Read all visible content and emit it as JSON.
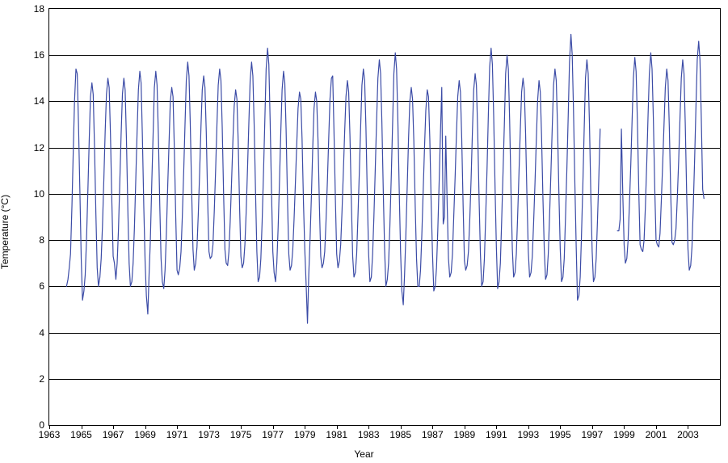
{
  "chart": {
    "type": "line",
    "background_color": "#ffffff",
    "plot_border_color": "#000000",
    "grid_color": "#000000",
    "line_color": "#3b4ba6",
    "line_width": 1.2,
    "font_family": "Arial",
    "axis_label_fontsize": 12,
    "tick_label_fontsize": 12,
    "y_axis": {
      "title": "Temperature (°C)",
      "min": 0,
      "max": 18,
      "tick_step": 2,
      "ticks": [
        0,
        2,
        4,
        6,
        8,
        10,
        12,
        14,
        16,
        18
      ]
    },
    "x_axis": {
      "title": "Year",
      "min": 1963,
      "max": 2005,
      "tick_step": 2,
      "ticks": [
        1963,
        1965,
        1967,
        1969,
        1971,
        1973,
        1975,
        1977,
        1979,
        1981,
        1983,
        1985,
        1987,
        1989,
        1991,
        1993,
        1995,
        1997,
        1999,
        2001,
        2003
      ]
    },
    "gap_ranges": [
      [
        1997.6,
        1998.5
      ]
    ],
    "series": [
      {
        "name": "temperature",
        "x": [
          1964.08,
          1964.17,
          1964.25,
          1964.33,
          1964.42,
          1964.5,
          1964.58,
          1964.67,
          1964.75,
          1964.83,
          1964.92,
          1965.0,
          1965.08,
          1965.17,
          1965.25,
          1965.33,
          1965.42,
          1965.5,
          1965.58,
          1965.67,
          1965.75,
          1965.83,
          1965.92,
          1966.0,
          1966.08,
          1966.17,
          1966.25,
          1966.33,
          1966.42,
          1966.5,
          1966.58,
          1966.67,
          1966.75,
          1966.83,
          1966.92,
          1967.0,
          1967.08,
          1967.17,
          1967.25,
          1967.33,
          1967.42,
          1967.5,
          1967.58,
          1967.67,
          1967.75,
          1967.83,
          1967.92,
          1968.0,
          1968.08,
          1968.17,
          1968.25,
          1968.33,
          1968.42,
          1968.5,
          1968.58,
          1968.67,
          1968.75,
          1968.83,
          1968.92,
          1969.0,
          1969.08,
          1969.17,
          1969.25,
          1969.33,
          1969.42,
          1969.5,
          1969.58,
          1969.67,
          1969.75,
          1969.83,
          1969.92,
          1970.0,
          1970.08,
          1970.17,
          1970.25,
          1970.33,
          1970.42,
          1970.5,
          1970.58,
          1970.67,
          1970.75,
          1970.83,
          1970.92,
          1971.0,
          1971.08,
          1971.17,
          1971.25,
          1971.33,
          1971.42,
          1971.5,
          1971.58,
          1971.67,
          1971.75,
          1971.83,
          1971.92,
          1972.0,
          1972.08,
          1972.17,
          1972.25,
          1972.33,
          1972.42,
          1972.5,
          1972.58,
          1972.67,
          1972.75,
          1972.83,
          1972.92,
          1973.0,
          1973.08,
          1973.17,
          1973.25,
          1973.33,
          1973.42,
          1973.5,
          1973.58,
          1973.67,
          1973.75,
          1973.83,
          1973.92,
          1974.0,
          1974.08,
          1974.17,
          1974.25,
          1974.33,
          1974.42,
          1974.5,
          1974.58,
          1974.67,
          1974.75,
          1974.83,
          1974.92,
          1975.0,
          1975.08,
          1975.17,
          1975.25,
          1975.33,
          1975.42,
          1975.5,
          1975.58,
          1975.67,
          1975.75,
          1975.83,
          1975.92,
          1976.0,
          1976.08,
          1976.17,
          1976.25,
          1976.33,
          1976.42,
          1976.5,
          1976.58,
          1976.67,
          1976.75,
          1976.83,
          1976.92,
          1977.0,
          1977.08,
          1977.17,
          1977.25,
          1977.33,
          1977.42,
          1977.5,
          1977.58,
          1977.67,
          1977.75,
          1977.83,
          1977.92,
          1978.0,
          1978.08,
          1978.17,
          1978.25,
          1978.33,
          1978.42,
          1978.5,
          1978.58,
          1978.67,
          1978.75,
          1978.83,
          1978.92,
          1979.0,
          1979.08,
          1979.17,
          1979.25,
          1979.33,
          1979.42,
          1979.5,
          1979.58,
          1979.67,
          1979.75,
          1979.83,
          1979.92,
          1980.0,
          1980.08,
          1980.17,
          1980.25,
          1980.33,
          1980.42,
          1980.5,
          1980.58,
          1980.67,
          1980.75,
          1980.83,
          1980.92,
          1981.0,
          1981.08,
          1981.17,
          1981.25,
          1981.33,
          1981.42,
          1981.5,
          1981.58,
          1981.67,
          1981.75,
          1981.83,
          1981.92,
          1982.0,
          1982.08,
          1982.17,
          1982.25,
          1982.33,
          1982.42,
          1982.5,
          1982.58,
          1982.67,
          1982.75,
          1982.83,
          1982.92,
          1983.0,
          1983.08,
          1983.17,
          1983.25,
          1983.33,
          1983.42,
          1983.5,
          1983.58,
          1983.67,
          1983.75,
          1983.83,
          1983.92,
          1984.0,
          1984.08,
          1984.17,
          1984.25,
          1984.33,
          1984.42,
          1984.5,
          1984.58,
          1984.67,
          1984.75,
          1984.83,
          1984.92,
          1985.0,
          1985.08,
          1985.17,
          1985.25,
          1985.33,
          1985.42,
          1985.5,
          1985.58,
          1985.67,
          1985.75,
          1985.83,
          1985.92,
          1986.0,
          1986.08,
          1986.17,
          1986.25,
          1986.33,
          1986.42,
          1986.5,
          1986.58,
          1986.67,
          1986.75,
          1986.83,
          1986.92,
          1987.0,
          1987.08,
          1987.17,
          1987.25,
          1987.33,
          1987.42,
          1987.5,
          1987.58,
          1987.67,
          1987.75,
          1987.83,
          1987.92,
          1988.0,
          1988.08,
          1988.17,
          1988.25,
          1988.33,
          1988.42,
          1988.5,
          1988.58,
          1988.67,
          1988.75,
          1988.83,
          1988.92,
          1989.0,
          1989.08,
          1989.17,
          1989.25,
          1989.33,
          1989.42,
          1989.5,
          1989.58,
          1989.67,
          1989.75,
          1989.83,
          1989.92,
          1990.0,
          1990.08,
          1990.17,
          1990.25,
          1990.33,
          1990.42,
          1990.5,
          1990.58,
          1990.67,
          1990.75,
          1990.83,
          1990.92,
          1991.0,
          1991.08,
          1991.17,
          1991.25,
          1991.33,
          1991.42,
          1991.5,
          1991.58,
          1991.67,
          1991.75,
          1991.83,
          1991.92,
          1992.0,
          1992.08,
          1992.17,
          1992.25,
          1992.33,
          1992.42,
          1992.5,
          1992.58,
          1992.67,
          1992.75,
          1992.83,
          1992.92,
          1993.0,
          1993.08,
          1993.17,
          1993.25,
          1993.33,
          1993.42,
          1993.5,
          1993.58,
          1993.67,
          1993.75,
          1993.83,
          1993.92,
          1994.0,
          1994.08,
          1994.17,
          1994.25,
          1994.33,
          1994.42,
          1994.5,
          1994.58,
          1994.67,
          1994.75,
          1994.83,
          1994.92,
          1995.0,
          1995.08,
          1995.17,
          1995.25,
          1995.33,
          1995.42,
          1995.5,
          1995.58,
          1995.67,
          1995.75,
          1995.83,
          1995.92,
          1996.0,
          1996.08,
          1996.17,
          1996.25,
          1996.33,
          1996.42,
          1996.5,
          1996.58,
          1996.67,
          1996.75,
          1996.83,
          1996.92,
          1997.0,
          1997.08,
          1997.17,
          1997.25,
          1997.33,
          1997.42,
          1997.5,
          1998.58,
          1998.67,
          1998.75,
          1998.83,
          1998.92,
          1999.0,
          1999.08,
          1999.17,
          1999.25,
          1999.33,
          1999.42,
          1999.5,
          1999.58,
          1999.67,
          1999.75,
          1999.83,
          1999.92,
          2000.0,
          2000.08,
          2000.17,
          2000.25,
          2000.33,
          2000.42,
          2000.5,
          2000.58,
          2000.67,
          2000.75,
          2000.83,
          2000.92,
          2001.0,
          2001.08,
          2001.17,
          2001.25,
          2001.33,
          2001.42,
          2001.5,
          2001.58,
          2001.67,
          2001.75,
          2001.83,
          2001.92,
          2002.0,
          2002.08,
          2002.17,
          2002.25,
          2002.33,
          2002.42,
          2002.5,
          2002.58,
          2002.67,
          2002.75,
          2002.83,
          2002.92,
          2003.0,
          2003.08,
          2003.17,
          2003.25,
          2003.33,
          2003.42,
          2003.5,
          2003.58,
          2003.67,
          2003.75,
          2003.83,
          2003.92,
          2004.0
        ],
        "y": [
          6.0,
          6.3,
          6.8,
          7.4,
          9.5,
          11.8,
          14.0,
          15.4,
          15.2,
          13.0,
          10.0,
          7.2,
          5.4,
          5.8,
          6.5,
          8.0,
          10.2,
          12.3,
          14.2,
          14.8,
          14.3,
          12.1,
          9.1,
          6.8,
          6.0,
          6.4,
          7.2,
          8.6,
          10.7,
          12.7,
          14.3,
          15.0,
          14.6,
          12.6,
          9.6,
          7.3,
          7.0,
          6.3,
          7.0,
          8.4,
          10.6,
          12.6,
          14.3,
          15.0,
          14.5,
          12.4,
          9.3,
          7.0,
          6.0,
          6.2,
          7.0,
          8.5,
          10.7,
          12.7,
          14.5,
          15.3,
          14.8,
          12.5,
          9.4,
          7.1,
          5.6,
          4.8,
          6.5,
          8.0,
          10.5,
          12.5,
          14.6,
          15.3,
          14.7,
          12.6,
          9.5,
          7.2,
          6.2,
          5.9,
          6.7,
          8.2,
          10.4,
          12.2,
          14.0,
          14.6,
          14.2,
          12.0,
          9.0,
          6.7,
          6.5,
          6.8,
          7.5,
          9.0,
          11.0,
          13.0,
          14.9,
          15.7,
          15.1,
          13.0,
          10.0,
          7.6,
          6.7,
          7.0,
          7.7,
          9.1,
          11.0,
          12.9,
          14.5,
          15.1,
          14.6,
          12.7,
          9.7,
          7.5,
          7.2,
          7.3,
          7.8,
          9.2,
          11.1,
          13.0,
          14.7,
          15.4,
          14.9,
          12.9,
          9.9,
          7.6,
          7.0,
          6.9,
          7.5,
          8.8,
          10.6,
          12.3,
          13.8,
          14.5,
          14.1,
          12.3,
          9.4,
          7.3,
          6.8,
          7.0,
          7.8,
          9.2,
          11.2,
          13.1,
          14.9,
          15.7,
          15.1,
          13.0,
          10.0,
          7.5,
          6.2,
          6.4,
          7.2,
          8.8,
          11.0,
          13.2,
          15.4,
          16.3,
          15.6,
          13.2,
          10.0,
          7.5,
          6.6,
          6.2,
          7.0,
          8.5,
          10.6,
          12.7,
          14.5,
          15.3,
          14.8,
          12.8,
          9.7,
          7.4,
          6.7,
          6.9,
          7.6,
          8.9,
          10.6,
          12.2,
          13.7,
          14.4,
          14.1,
          12.4,
          9.6,
          7.6,
          6.2,
          4.4,
          6.5,
          8.0,
          10.0,
          12.0,
          13.7,
          14.4,
          14.0,
          12.3,
          9.4,
          7.3,
          6.8,
          7.0,
          7.5,
          8.8,
          10.6,
          12.4,
          14.1,
          15.0,
          15.1,
          12.7,
          9.7,
          7.4,
          6.8,
          7.1,
          7.8,
          9.2,
          11.0,
          12.7,
          14.2,
          14.9,
          14.4,
          12.5,
          9.6,
          7.3,
          6.4,
          6.6,
          7.4,
          9.0,
          11.0,
          12.9,
          14.7,
          15.4,
          14.9,
          12.9,
          9.8,
          7.4,
          6.2,
          6.4,
          7.4,
          9.0,
          11.2,
          13.2,
          15.0,
          15.8,
          15.2,
          13.1,
          10.0,
          7.6,
          6.0,
          6.3,
          7.0,
          8.6,
          10.8,
          13.0,
          15.2,
          16.1,
          15.4,
          13.2,
          10.0,
          7.5,
          5.8,
          5.2,
          6.5,
          8.2,
          10.4,
          12.4,
          14.0,
          14.6,
          14.1,
          12.3,
          9.4,
          7.2,
          6.0,
          6.0,
          6.7,
          8.2,
          10.2,
          12.0,
          13.6,
          14.5,
          14.2,
          12.4,
          9.5,
          7.4,
          5.8,
          6.0,
          6.8,
          8.4,
          10.6,
          12.7,
          14.6,
          8.7,
          9.0,
          12.5,
          9.5,
          7.2,
          6.4,
          6.6,
          7.4,
          9.0,
          10.8,
          12.6,
          14.2,
          14.9,
          14.4,
          12.4,
          9.4,
          7.1,
          6.7,
          6.9,
          7.5,
          8.8,
          10.7,
          12.7,
          14.5,
          15.2,
          14.7,
          12.7,
          9.7,
          7.4,
          6.0,
          6.2,
          7.2,
          9.0,
          11.2,
          13.5,
          15.5,
          16.3,
          15.6,
          13.4,
          10.2,
          7.7,
          5.9,
          6.2,
          7.0,
          8.8,
          11.0,
          13.0,
          15.2,
          16.0,
          15.4,
          13.2,
          10.0,
          7.6,
          6.4,
          6.6,
          7.4,
          9.0,
          11.0,
          12.8,
          14.4,
          15.0,
          14.5,
          12.6,
          9.7,
          7.5,
          6.4,
          6.6,
          7.3,
          8.7,
          10.5,
          12.3,
          14.0,
          14.9,
          14.4,
          12.5,
          9.7,
          7.6,
          6.3,
          6.5,
          7.4,
          9.0,
          11.0,
          12.9,
          14.7,
          15.4,
          14.9,
          12.9,
          9.9,
          7.6,
          6.2,
          6.4,
          7.2,
          9.0,
          11.2,
          13.4,
          15.7,
          16.9,
          16.0,
          13.6,
          10.3,
          7.7,
          5.4,
          5.6,
          6.4,
          8.2,
          10.5,
          12.8,
          15.0,
          15.8,
          15.2,
          13.0,
          9.8,
          7.5,
          6.2,
          6.4,
          7.2,
          8.8,
          10.8,
          12.8,
          8.4,
          8.4,
          8.9,
          12.8,
          9.9,
          7.8,
          7.0,
          7.2,
          8.0,
          9.5,
          11.3,
          13.2,
          15.0,
          15.9,
          15.3,
          13.2,
          10.1,
          7.8,
          7.6,
          7.5,
          8.0,
          9.4,
          11.4,
          13.4,
          15.2,
          16.1,
          15.4,
          13.3,
          10.2,
          8.0,
          7.8,
          7.7,
          8.3,
          9.7,
          11.4,
          13.0,
          14.6,
          15.4,
          14.9,
          12.9,
          10.0,
          7.9,
          7.8,
          8.0,
          8.5,
          9.8,
          11.5,
          13.3,
          15.0,
          15.8,
          15.2,
          13.0,
          9.9,
          7.6,
          6.7,
          6.9,
          7.7,
          9.4,
          11.6,
          13.8,
          15.8,
          16.6,
          15.8,
          13.4,
          10.2,
          9.8
        ]
      }
    ]
  }
}
